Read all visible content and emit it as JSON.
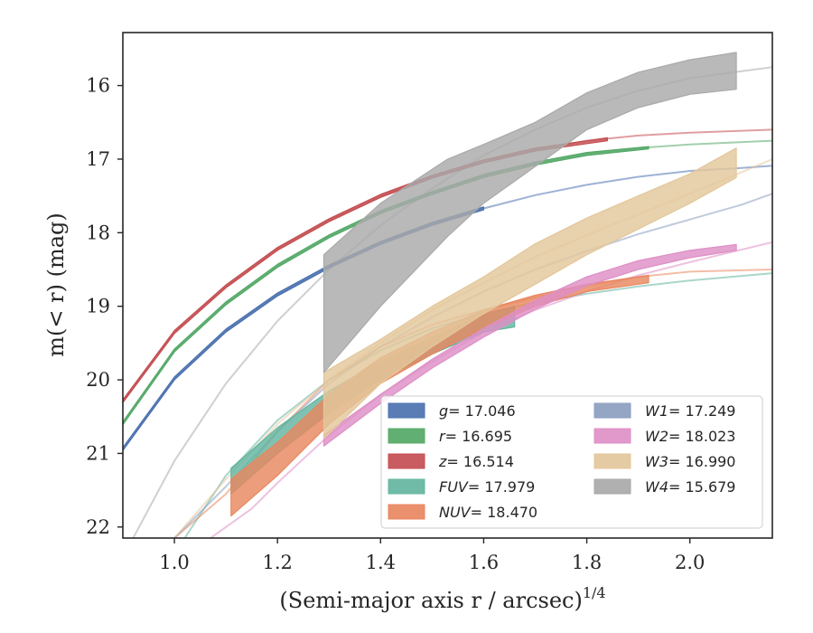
{
  "chart_data": {
    "type": "line",
    "title": "",
    "xlabel": "(Semi-major axis r / arcsec)",
    "xlabel_sup": "1/4",
    "ylabel": "m(< r) (mag)",
    "xlim": [
      0.9,
      2.16
    ],
    "ylim": [
      22.15,
      15.28
    ],
    "y_inverted": true,
    "grid": false,
    "legend_position": "lower-right",
    "x_ticks": [
      "1.0",
      "1.2",
      "1.4",
      "1.6",
      "1.8",
      "2.0"
    ],
    "y_ticks": [
      "16",
      "17",
      "18",
      "19",
      "20",
      "21",
      "22"
    ],
    "series": [
      {
        "name": "g",
        "legend": "= 17.046",
        "color": "#4c72b0",
        "model": [
          [
            0.9,
            20.95
          ],
          [
            1.0,
            19.98
          ],
          [
            1.1,
            19.33
          ],
          [
            1.2,
            18.84
          ],
          [
            1.3,
            18.46
          ],
          [
            1.4,
            18.14
          ],
          [
            1.5,
            17.88
          ],
          [
            1.6,
            17.67
          ],
          [
            1.7,
            17.49
          ],
          [
            1.8,
            17.35
          ],
          [
            1.9,
            17.24
          ],
          [
            2.0,
            17.16
          ],
          [
            2.1,
            17.12
          ],
          [
            2.16,
            17.09
          ]
        ],
        "band_x": [
          0.9,
          1.0,
          1.1,
          1.2,
          1.3,
          1.4,
          1.5,
          1.6
        ],
        "band_upper": [
          20.92,
          19.96,
          19.31,
          18.82,
          18.44,
          18.12,
          17.86,
          17.65
        ],
        "band_lower": [
          20.96,
          20.0,
          19.35,
          18.86,
          18.48,
          18.16,
          17.9,
          17.69
        ]
      },
      {
        "name": "r",
        "legend": "= 16.695",
        "color": "#55a868",
        "model": [
          [
            0.9,
            20.6
          ],
          [
            1.0,
            19.6
          ],
          [
            1.1,
            18.96
          ],
          [
            1.2,
            18.45
          ],
          [
            1.3,
            18.05
          ],
          [
            1.4,
            17.72
          ],
          [
            1.5,
            17.46
          ],
          [
            1.6,
            17.23
          ],
          [
            1.7,
            17.06
          ],
          [
            1.8,
            16.93
          ],
          [
            1.9,
            16.85
          ],
          [
            2.0,
            16.8
          ],
          [
            2.16,
            16.75
          ]
        ],
        "band_x": [
          0.9,
          1.0,
          1.1,
          1.2,
          1.3,
          1.4,
          1.5,
          1.6,
          1.7,
          1.8,
          1.92
        ],
        "band_upper": [
          20.57,
          19.58,
          18.94,
          18.43,
          18.03,
          17.7,
          17.44,
          17.21,
          17.04,
          16.91,
          16.83
        ],
        "band_lower": [
          20.61,
          19.62,
          18.98,
          18.47,
          18.07,
          17.74,
          17.48,
          17.25,
          17.08,
          16.95,
          16.86
        ]
      },
      {
        "name": "z",
        "legend": "= 16.514",
        "color": "#c44e52",
        "model": [
          [
            0.9,
            20.3
          ],
          [
            1.0,
            19.35
          ],
          [
            1.1,
            18.73
          ],
          [
            1.2,
            18.22
          ],
          [
            1.3,
            17.83
          ],
          [
            1.4,
            17.5
          ],
          [
            1.5,
            17.24
          ],
          [
            1.6,
            17.03
          ],
          [
            1.7,
            16.87
          ],
          [
            1.8,
            16.75
          ],
          [
            1.9,
            16.68
          ],
          [
            2.0,
            16.64
          ],
          [
            2.16,
            16.6
          ]
        ],
        "band_x": [
          0.9,
          1.0,
          1.1,
          1.2,
          1.3,
          1.4,
          1.5,
          1.6,
          1.7,
          1.84
        ],
        "band_upper": [
          20.27,
          19.33,
          18.71,
          18.2,
          17.81,
          17.48,
          17.22,
          17.01,
          16.85,
          16.71
        ],
        "band_lower": [
          20.31,
          19.37,
          18.75,
          18.24,
          17.85,
          17.52,
          17.26,
          17.05,
          16.89,
          16.75
        ]
      },
      {
        "name": "FUV",
        "legend": "= 17.979",
        "color": "#64b5a0",
        "model": [
          [
            1.02,
            22.15
          ],
          [
            1.1,
            21.3
          ],
          [
            1.2,
            20.55
          ],
          [
            1.3,
            20.0
          ],
          [
            1.4,
            19.6
          ],
          [
            1.5,
            19.3
          ],
          [
            1.6,
            19.1
          ],
          [
            1.7,
            18.95
          ],
          [
            1.8,
            18.83
          ],
          [
            1.9,
            18.73
          ],
          [
            2.0,
            18.65
          ],
          [
            2.16,
            18.55
          ]
        ],
        "band_x": [
          1.11,
          1.2,
          1.3,
          1.4,
          1.5,
          1.6,
          1.66
        ],
        "band_upper": [
          21.2,
          20.65,
          20.15,
          19.75,
          19.42,
          19.12,
          19.0
        ],
        "band_lower": [
          21.55,
          21.0,
          20.45,
          20.0,
          19.65,
          19.35,
          19.28
        ]
      },
      {
        "name": "NUV",
        "legend": "= 18.470",
        "color": "#e8875f",
        "model": [
          [
            1.0,
            22.15
          ],
          [
            1.1,
            21.55
          ],
          [
            1.2,
            20.7
          ],
          [
            1.3,
            20.0
          ],
          [
            1.4,
            19.55
          ],
          [
            1.5,
            19.25
          ],
          [
            1.6,
            19.05
          ],
          [
            1.7,
            18.88
          ],
          [
            1.8,
            18.72
          ],
          [
            1.9,
            18.6
          ],
          [
            2.0,
            18.53
          ],
          [
            2.16,
            18.5
          ]
        ],
        "band_x": [
          1.11,
          1.2,
          1.3,
          1.4,
          1.5,
          1.6,
          1.7,
          1.8,
          1.92
        ],
        "band_upper": [
          21.35,
          20.85,
          20.2,
          19.7,
          19.35,
          19.05,
          18.85,
          18.7,
          18.58
        ],
        "band_lower": [
          21.85,
          21.3,
          20.6,
          20.05,
          19.65,
          19.3,
          19.0,
          18.8,
          18.68
        ]
      },
      {
        "name": "W1",
        "legend": "= 17.249",
        "color": "#8c9ec0",
        "model": [
          [
            1.0,
            22.15
          ],
          [
            1.1,
            21.45
          ],
          [
            1.2,
            20.7
          ],
          [
            1.3,
            20.05
          ],
          [
            1.4,
            19.55
          ],
          [
            1.5,
            19.15
          ],
          [
            1.6,
            18.8
          ],
          [
            1.7,
            18.5
          ],
          [
            1.8,
            18.25
          ],
          [
            1.9,
            18.02
          ],
          [
            2.0,
            17.82
          ],
          [
            2.1,
            17.62
          ],
          [
            2.16,
            17.47
          ]
        ],
        "band_x": [],
        "band_upper": [],
        "band_lower": []
      },
      {
        "name": "W2",
        "legend": "= 18.023",
        "color": "#de8fc6",
        "model": [
          [
            1.07,
            22.15
          ],
          [
            1.15,
            21.75
          ],
          [
            1.2,
            21.4
          ],
          [
            1.3,
            20.75
          ],
          [
            1.4,
            20.2
          ],
          [
            1.5,
            19.75
          ],
          [
            1.6,
            19.35
          ],
          [
            1.7,
            19.05
          ],
          [
            1.8,
            18.8
          ],
          [
            1.9,
            18.58
          ],
          [
            2.0,
            18.4
          ],
          [
            2.16,
            18.13
          ]
        ],
        "band_x": [
          1.29,
          1.4,
          1.5,
          1.6,
          1.7,
          1.8,
          1.9,
          2.0,
          2.09
        ],
        "band_upper": [
          20.75,
          20.2,
          19.72,
          19.3,
          18.92,
          18.6,
          18.38,
          18.24,
          18.16
        ],
        "band_lower": [
          20.9,
          20.32,
          19.84,
          19.42,
          19.04,
          18.72,
          18.5,
          18.34,
          18.24
        ]
      },
      {
        "name": "W3",
        "legend": "= 16.990",
        "color": "#e3c79b",
        "model": [
          [
            1.0,
            22.15
          ],
          [
            1.1,
            21.35
          ],
          [
            1.2,
            20.6
          ],
          [
            1.3,
            20.0
          ],
          [
            1.4,
            19.5
          ],
          [
            1.5,
            19.05
          ],
          [
            1.6,
            18.68
          ],
          [
            1.7,
            18.33
          ],
          [
            1.8,
            18.03
          ],
          [
            1.9,
            17.75
          ],
          [
            2.0,
            17.47
          ],
          [
            2.1,
            17.18
          ],
          [
            2.16,
            17.0
          ]
        ],
        "band_x": [
          1.29,
          1.4,
          1.5,
          1.6,
          1.7,
          1.8,
          1.9,
          2.0,
          2.09
        ],
        "band_upper": [
          19.9,
          19.45,
          19.0,
          18.6,
          18.15,
          17.8,
          17.5,
          17.2,
          16.85
        ],
        "band_lower": [
          20.8,
          20.05,
          19.55,
          19.1,
          18.7,
          18.3,
          17.95,
          17.6,
          17.25
        ]
      },
      {
        "name": "W4",
        "legend": "= 15.679",
        "color": "#a9a9a9",
        "model": [
          [
            0.92,
            22.15
          ],
          [
            1.0,
            21.1
          ],
          [
            1.1,
            20.05
          ],
          [
            1.2,
            19.2
          ],
          [
            1.3,
            18.5
          ],
          [
            1.4,
            17.9
          ],
          [
            1.5,
            17.4
          ],
          [
            1.6,
            16.95
          ],
          [
            1.7,
            16.6
          ],
          [
            1.8,
            16.3
          ],
          [
            1.9,
            16.07
          ],
          [
            2.0,
            15.9
          ],
          [
            2.16,
            15.75
          ]
        ],
        "band_x": [
          1.29,
          1.4,
          1.53,
          1.6,
          1.7,
          1.8,
          1.9,
          2.0,
          2.09
        ],
        "band_upper": [
          18.3,
          17.6,
          17.0,
          16.8,
          16.5,
          16.1,
          15.82,
          15.65,
          15.55
        ],
        "band_lower": [
          19.9,
          19.0,
          18.05,
          17.6,
          17.1,
          16.6,
          16.3,
          16.12,
          16.05
        ]
      }
    ]
  }
}
